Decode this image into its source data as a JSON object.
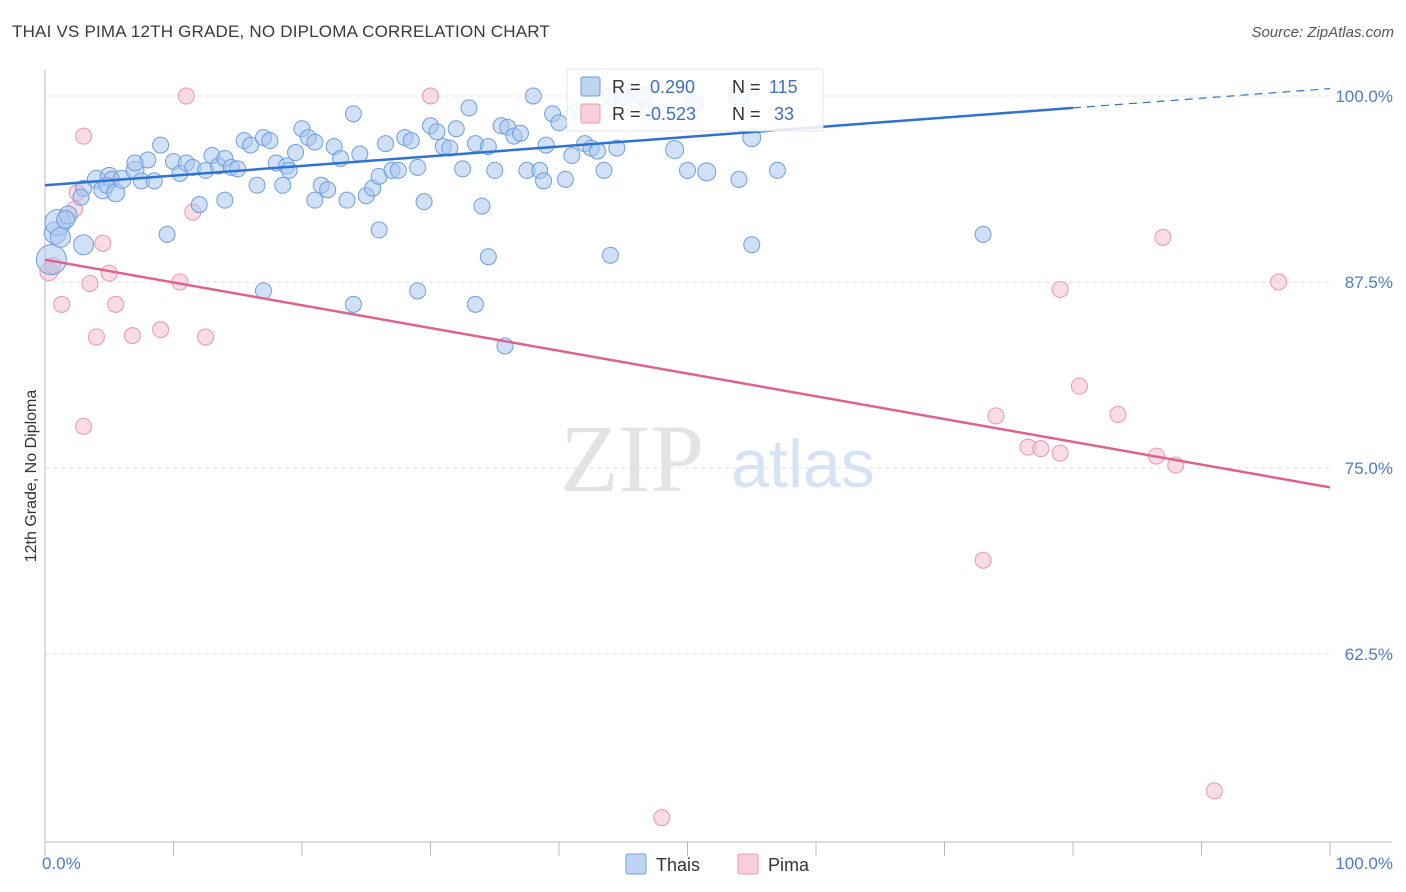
{
  "header": {
    "title": "THAI VS PIMA 12TH GRADE, NO DIPLOMA CORRELATION CHART",
    "source": "Source: ZipAtlas.com"
  },
  "watermark": {
    "zip": "ZIP",
    "atlas": "atlas"
  },
  "colors": {
    "thais_fill": "#a9c6ef",
    "thais_stroke": "#6d9ee0",
    "thais_line": "#2e72d2",
    "pima_fill": "#f6bfd0",
    "pima_stroke": "#ec94b3",
    "pima_line": "#e0608f",
    "grid": "#dcdcdc",
    "axis_label": "#4a7cc9"
  },
  "legend": {
    "rows": [
      {
        "r_label": "R =",
        "r_value": " 0.290",
        "n_label": "N =",
        "n_value": "115"
      },
      {
        "r_label": "R =",
        "r_value": "-0.523",
        "n_label": "N =",
        "n_value": " 33"
      }
    ]
  },
  "bottom_legend": {
    "items": [
      "Thais",
      "Pima"
    ]
  },
  "chart_data": {
    "type": "scatter",
    "title": "THAI VS PIMA 12TH GRADE, NO DIPLOMA CORRELATION CHART",
    "xlabel": "",
    "ylabel": "12th Grade, No Diploma",
    "xlim": [
      0,
      100
    ],
    "ylim": [
      50,
      102
    ],
    "x_ticks": [
      0,
      10,
      20,
      30,
      40,
      50,
      60,
      70,
      80,
      90,
      100
    ],
    "x_tick_labels": [
      "0.0%",
      "100.0%"
    ],
    "y_ticks": [
      62.5,
      75.0,
      87.5,
      100.0
    ],
    "y_tick_labels": [
      "62.5%",
      "75.0%",
      "87.5%",
      "100.0%"
    ],
    "grid": true,
    "legend_placement": "top-center",
    "series": [
      {
        "name": "Thais",
        "r": 0.29,
        "n": 115,
        "trend": {
          "x0": 0,
          "y0": 94.0,
          "x1": 100,
          "y1": 100.5,
          "solid_until_x": 80
        },
        "points": [
          [
            0.5,
            89.0,
            14
          ],
          [
            0.8,
            90.8,
            10
          ],
          [
            1.0,
            91.5,
            12
          ],
          [
            1.2,
            90.5,
            9
          ],
          [
            1.8,
            92.0,
            8
          ],
          [
            1.6,
            91.7,
            8
          ],
          [
            3.0,
            93.8,
            7
          ],
          [
            2.8,
            93.2,
            7
          ],
          [
            3.0,
            90.0,
            9
          ],
          [
            4.0,
            94.4,
            8
          ],
          [
            4.5,
            93.7,
            8
          ],
          [
            5.0,
            94.6,
            8
          ],
          [
            5.2,
            94.4,
            7
          ],
          [
            4.8,
            94.0,
            7
          ],
          [
            5.5,
            93.5,
            8
          ],
          [
            6.0,
            94.4,
            8
          ],
          [
            7.0,
            95.0,
            8
          ],
          [
            7.5,
            94.3,
            7
          ],
          [
            8.0,
            95.7,
            7
          ],
          [
            8.5,
            94.3,
            7
          ],
          [
            7.0,
            95.5,
            7
          ],
          [
            9.0,
            96.7,
            7
          ],
          [
            9.5,
            90.7,
            7
          ],
          [
            10.0,
            95.6,
            7
          ],
          [
            10.5,
            94.8,
            7
          ],
          [
            11.0,
            95.5,
            7
          ],
          [
            11.5,
            95.2,
            7
          ],
          [
            12.0,
            92.7,
            7
          ],
          [
            12.5,
            95.0,
            7
          ],
          [
            13.0,
            96.0,
            7
          ],
          [
            13.5,
            95.3,
            7
          ],
          [
            14.0,
            95.8,
            7
          ],
          [
            14.5,
            95.2,
            7
          ],
          [
            15.0,
            95.1,
            7
          ],
          [
            15.5,
            97.0,
            7
          ],
          [
            16.0,
            96.7,
            7
          ],
          [
            16.5,
            94.0,
            7
          ],
          [
            17.0,
            97.2,
            7
          ],
          [
            17.5,
            97.0,
            7
          ],
          [
            18.0,
            95.5,
            7
          ],
          [
            18.5,
            94.0,
            7
          ],
          [
            18.8,
            95.3,
            7
          ],
          [
            19.0,
            95.0,
            7
          ],
          [
            19.5,
            96.2,
            7
          ],
          [
            20.0,
            97.8,
            7
          ],
          [
            20.5,
            97.2,
            7
          ],
          [
            21.0,
            96.9,
            7
          ],
          [
            21.5,
            94.0,
            7
          ],
          [
            22.0,
            93.7,
            7
          ],
          [
            22.5,
            96.6,
            7
          ],
          [
            23.0,
            95.8,
            7
          ],
          [
            23.5,
            93.0,
            7
          ],
          [
            24.0,
            98.8,
            7
          ],
          [
            24.5,
            96.1,
            7
          ],
          [
            25.0,
            93.3,
            7
          ],
          [
            25.5,
            93.8,
            7
          ],
          [
            26.0,
            94.6,
            7
          ],
          [
            26.5,
            96.8,
            7
          ],
          [
            27.0,
            95.0,
            7
          ],
          [
            27.5,
            95.0,
            7
          ],
          [
            28.0,
            97.2,
            7
          ],
          [
            28.5,
            97.0,
            7
          ],
          [
            29.0,
            95.2,
            7
          ],
          [
            29.5,
            92.9,
            7
          ],
          [
            30.0,
            98.0,
            7
          ],
          [
            30.5,
            97.6,
            7
          ],
          [
            31.0,
            96.6,
            7
          ],
          [
            31.5,
            96.5,
            7
          ],
          [
            32.0,
            97.8,
            7
          ],
          [
            32.5,
            95.1,
            7
          ],
          [
            33.0,
            99.2,
            7
          ],
          [
            33.5,
            96.8,
            7
          ],
          [
            34.0,
            92.6,
            7
          ],
          [
            34.5,
            96.6,
            7
          ],
          [
            35.0,
            95.0,
            7
          ],
          [
            35.5,
            98.0,
            7
          ],
          [
            36.0,
            97.9,
            7
          ],
          [
            36.5,
            97.3,
            7
          ],
          [
            37.0,
            97.5,
            7
          ],
          [
            37.5,
            95.0,
            7
          ],
          [
            38.0,
            100.0,
            7
          ],
          [
            38.5,
            95.0,
            7
          ],
          [
            38.8,
            94.3,
            7
          ],
          [
            39.0,
            96.7,
            7
          ],
          [
            39.5,
            98.8,
            7
          ],
          [
            40.0,
            98.2,
            7
          ],
          [
            40.5,
            94.4,
            7
          ],
          [
            41.0,
            96.0,
            7
          ],
          [
            41.5,
            99.0,
            7
          ],
          [
            42.0,
            96.8,
            7
          ],
          [
            42.5,
            96.5,
            7
          ],
          [
            43.0,
            96.3,
            7
          ],
          [
            43.5,
            95.0,
            7
          ],
          [
            44.0,
            100.0,
            7
          ],
          [
            44.5,
            96.5,
            7
          ],
          [
            45.0,
            100.0,
            8
          ],
          [
            46.5,
            100.0,
            8
          ],
          [
            47.0,
            99.0,
            8
          ],
          [
            50.5,
            99.5,
            8
          ],
          [
            49.0,
            96.4,
            8
          ],
          [
            51.5,
            94.9,
            8
          ],
          [
            55.0,
            97.2,
            8
          ],
          [
            54.0,
            100.0,
            9
          ],
          [
            17.0,
            86.9,
            7
          ],
          [
            24.0,
            86.0,
            7
          ],
          [
            33.5,
            86.0,
            7
          ],
          [
            34.5,
            89.2,
            7
          ],
          [
            29.0,
            86.9,
            7
          ],
          [
            35.8,
            83.2,
            7
          ],
          [
            14.0,
            93.0,
            7
          ],
          [
            55.0,
            90.0,
            7
          ],
          [
            73.0,
            90.7,
            7
          ],
          [
            54.0,
            94.4,
            7
          ],
          [
            50.0,
            95.0,
            7
          ],
          [
            57.0,
            95.0,
            7
          ],
          [
            44.0,
            89.3,
            7
          ],
          [
            26.0,
            91.0,
            7
          ],
          [
            21.0,
            93.0,
            7
          ]
        ]
      },
      {
        "name": "Pima",
        "r": -0.523,
        "n": 33,
        "trend": {
          "x0": 0,
          "y0": 89.0,
          "x1": 100,
          "y1": 73.7
        },
        "points": [
          [
            0.3,
            88.2,
            8
          ],
          [
            0.6,
            88.6,
            7
          ],
          [
            1.3,
            86.0,
            7
          ],
          [
            2.3,
            92.4,
            7
          ],
          [
            2.5,
            93.5,
            7
          ],
          [
            3.0,
            97.3,
            7
          ],
          [
            3.5,
            87.4,
            7
          ],
          [
            4.0,
            83.8,
            7
          ],
          [
            4.5,
            90.1,
            7
          ],
          [
            5.0,
            88.1,
            7
          ],
          [
            5.5,
            86.0,
            7
          ],
          [
            6.8,
            83.9,
            7
          ],
          [
            9.0,
            84.3,
            7
          ],
          [
            10.5,
            87.5,
            7
          ],
          [
            11.5,
            92.2,
            7
          ],
          [
            12.5,
            83.8,
            7
          ],
          [
            3.0,
            77.8,
            7
          ],
          [
            11.0,
            100.0,
            7
          ],
          [
            30.0,
            100.0,
            7
          ],
          [
            73.0,
            68.8,
            7
          ],
          [
            74.0,
            78.5,
            7
          ],
          [
            76.5,
            76.4,
            7
          ],
          [
            77.5,
            76.3,
            7
          ],
          [
            79.0,
            87.0,
            7
          ],
          [
            79.0,
            76.0,
            7
          ],
          [
            80.5,
            80.5,
            7
          ],
          [
            83.5,
            78.6,
            7
          ],
          [
            86.5,
            75.8,
            7
          ],
          [
            87.0,
            90.5,
            7
          ],
          [
            88.0,
            75.2,
            7
          ],
          [
            96.0,
            87.5,
            7
          ],
          [
            91.0,
            53.3,
            7
          ],
          [
            48.0,
            51.5,
            7
          ]
        ]
      }
    ]
  }
}
